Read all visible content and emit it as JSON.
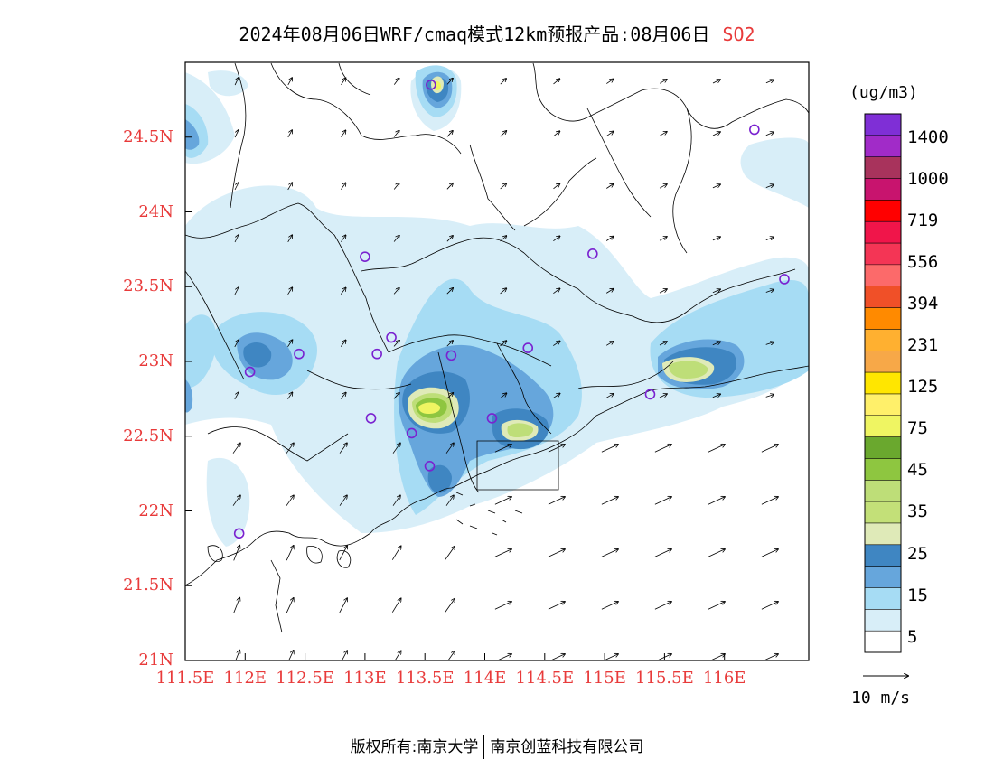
{
  "title": {
    "text": "2024年08月06日WRF/cmaq模式12km预报产品:08月06日",
    "pollutant": "SO2"
  },
  "axes": {
    "lat_ticks": [
      "24.5N",
      "24N",
      "23.5N",
      "23N",
      "22.5N",
      "22N",
      "21.5N",
      "21N"
    ],
    "lon_ticks": [
      "111.5E",
      "112E",
      "112.5E",
      "113E",
      "113.5E",
      "114E",
      "114.5E",
      "115E",
      "115.5E",
      "116E"
    ],
    "lon_range": [
      111.5,
      116.7
    ],
    "lat_range": [
      21.0,
      25.0
    ]
  },
  "colorbar": {
    "unit": "(ug/m3)",
    "labels": [
      "1400",
      "1000",
      "719",
      "556",
      "394",
      "231",
      "125",
      "75",
      "45",
      "35",
      "25",
      "15",
      "5"
    ],
    "colors_top_to_bottom": [
      "#7f2fd6",
      "#a12bc8",
      "#a8335c",
      "#c8146e",
      "#ff0000",
      "#f0154a",
      "#f43555",
      "#fc6a6a",
      "#f05028",
      "#ff8a00",
      "#ffb030",
      "#f7a848",
      "#ffe600",
      "#fff06a",
      "#eff562",
      "#6aa82e",
      "#8ec640",
      "#bede78",
      "#c3e078",
      "#dfeab8",
      "#3f86c2",
      "#66a6dc",
      "#a6dcf4",
      "#d8eef8",
      "#ffffff"
    ]
  },
  "wind_reference": {
    "label": "10 m/s"
  },
  "footer": {
    "left": "版权所有:南京大学",
    "right": "南京创蓝科技有限公司"
  },
  "field_colors": {
    "c5": "#d8eef8",
    "c15": "#a6dcf4",
    "c25": "#66a6dc",
    "c35": "#3f86c2",
    "c45": "#dfeab8",
    "c55": "#bede78",
    "c75": "#8ec640",
    "c85": "#eff562"
  },
  "stations": [
    {
      "lon": 113.55,
      "lat": 24.85
    },
    {
      "lon": 116.25,
      "lat": 24.55
    },
    {
      "lon": 113.0,
      "lat": 23.7
    },
    {
      "lon": 114.9,
      "lat": 23.72
    },
    {
      "lon": 116.5,
      "lat": 23.55
    },
    {
      "lon": 113.22,
      "lat": 23.16
    },
    {
      "lon": 112.45,
      "lat": 23.05
    },
    {
      "lon": 113.1,
      "lat": 23.05
    },
    {
      "lon": 113.72,
      "lat": 23.04
    },
    {
      "lon": 114.36,
      "lat": 23.09
    },
    {
      "lon": 112.04,
      "lat": 22.93
    },
    {
      "lon": 113.05,
      "lat": 22.62
    },
    {
      "lon": 113.39,
      "lat": 22.52
    },
    {
      "lon": 114.06,
      "lat": 22.62
    },
    {
      "lon": 115.38,
      "lat": 22.78
    },
    {
      "lon": 113.54,
      "lat": 22.3
    },
    {
      "lon": 111.95,
      "lat": 21.85
    }
  ]
}
